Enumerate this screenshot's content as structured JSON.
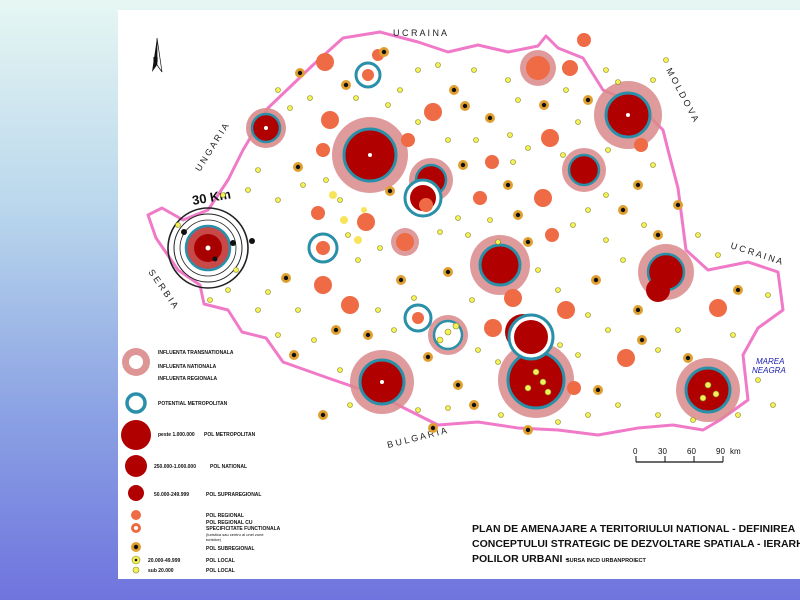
{
  "map": {
    "countries": {
      "ucraina_north": "U C R A I N A",
      "moldova": "M O L D O V A",
      "ucraina_east": "U C R A I N A",
      "ungaria": "U N G A R I A",
      "serbia": "S E R B I A",
      "bulgaria": "B U L G A R I A"
    },
    "sea": {
      "line1": "MAREA",
      "line2": "NEAGRA"
    },
    "radius_label": "30 Km",
    "scale": {
      "ticks": [
        "0",
        "30",
        "60",
        "90"
      ],
      "unit": "km"
    },
    "colors": {
      "border": "#f07ac8",
      "metropolitan": "#b00000",
      "influence": "#d98a8a",
      "ring": "#2a8fa8",
      "regional": "#ee6b45",
      "subregional": "#e0a030",
      "local": "#f3f05a"
    }
  },
  "legend": {
    "influence_transnational": "INFLUENTA TRANSNATIONALA",
    "influence_national": "INFLUENTA NATIONALA",
    "influence_regional": "INFLUENTA REGIONALA",
    "potential_metro": "POTENTIAL METROPOLITAN",
    "metro_range": "peste 1.000.000",
    "metro_label": "POL METROPOLITAN",
    "national_range": "250.000-1.000.000",
    "national_label": "POL NATIONAL",
    "supra_range": "50.000-249.999",
    "supra_label": "POL SUPRAREGIONAL",
    "regional_label": "POL REGIONAL",
    "regional_specific_1": "POL REGIONAL CU",
    "regional_specific_2": "SPECIFICITATE FUNCTIONALA",
    "regional_specific_3": "(turistica sau centru al unei zone",
    "regional_specific_4": "turistice)",
    "subregional_label": "POL SUBREGIONAL",
    "local1_range": "20.000-49.999",
    "local1_label": "POL LOCAL",
    "local2_range": "sub 20.000",
    "local2_label": "POL LOCAL"
  },
  "title": {
    "line1": "PLAN DE AMENAJARE A TERITORIULUI NATIONAL - DEFINIREA",
    "line2": "CONCEPTULUI STRATEGIC DE DEZVOLTARE SPATIALA - IERARHIZAREA",
    "line3": "POLILOR URBANI -",
    "source": "SURSA INCD URBANPROIECT"
  }
}
